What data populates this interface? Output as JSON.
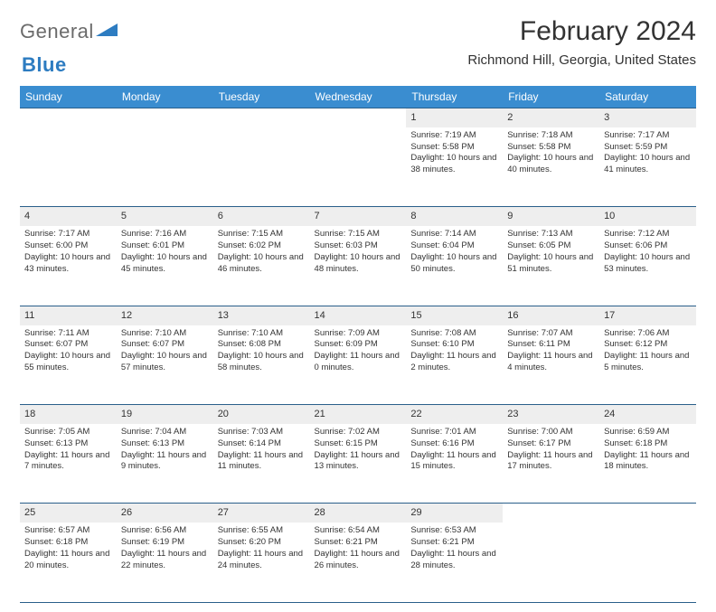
{
  "logo": {
    "word1": "General",
    "word2": "Blue"
  },
  "title": "February 2024",
  "location": "Richmond Hill, Georgia, United States",
  "dayHeaders": [
    "Sunday",
    "Monday",
    "Tuesday",
    "Wednesday",
    "Thursday",
    "Friday",
    "Saturday"
  ],
  "colors": {
    "headerBg": "#3a8dd0",
    "headerText": "#ffffff",
    "ruleLine": "#2a5f8a",
    "dayStripe": "#eeeeee",
    "bodyText": "#333333",
    "logoGray": "#6b6b6b",
    "logoBlue": "#2d7cc1"
  },
  "weeks": [
    [
      null,
      null,
      null,
      null,
      {
        "n": "1",
        "sr": "7:19 AM",
        "ss": "5:58 PM",
        "dl": "10 hours and 38 minutes."
      },
      {
        "n": "2",
        "sr": "7:18 AM",
        "ss": "5:58 PM",
        "dl": "10 hours and 40 minutes."
      },
      {
        "n": "3",
        "sr": "7:17 AM",
        "ss": "5:59 PM",
        "dl": "10 hours and 41 minutes."
      }
    ],
    [
      {
        "n": "4",
        "sr": "7:17 AM",
        "ss": "6:00 PM",
        "dl": "10 hours and 43 minutes."
      },
      {
        "n": "5",
        "sr": "7:16 AM",
        "ss": "6:01 PM",
        "dl": "10 hours and 45 minutes."
      },
      {
        "n": "6",
        "sr": "7:15 AM",
        "ss": "6:02 PM",
        "dl": "10 hours and 46 minutes."
      },
      {
        "n": "7",
        "sr": "7:15 AM",
        "ss": "6:03 PM",
        "dl": "10 hours and 48 minutes."
      },
      {
        "n": "8",
        "sr": "7:14 AM",
        "ss": "6:04 PM",
        "dl": "10 hours and 50 minutes."
      },
      {
        "n": "9",
        "sr": "7:13 AM",
        "ss": "6:05 PM",
        "dl": "10 hours and 51 minutes."
      },
      {
        "n": "10",
        "sr": "7:12 AM",
        "ss": "6:06 PM",
        "dl": "10 hours and 53 minutes."
      }
    ],
    [
      {
        "n": "11",
        "sr": "7:11 AM",
        "ss": "6:07 PM",
        "dl": "10 hours and 55 minutes."
      },
      {
        "n": "12",
        "sr": "7:10 AM",
        "ss": "6:07 PM",
        "dl": "10 hours and 57 minutes."
      },
      {
        "n": "13",
        "sr": "7:10 AM",
        "ss": "6:08 PM",
        "dl": "10 hours and 58 minutes."
      },
      {
        "n": "14",
        "sr": "7:09 AM",
        "ss": "6:09 PM",
        "dl": "11 hours and 0 minutes."
      },
      {
        "n": "15",
        "sr": "7:08 AM",
        "ss": "6:10 PM",
        "dl": "11 hours and 2 minutes."
      },
      {
        "n": "16",
        "sr": "7:07 AM",
        "ss": "6:11 PM",
        "dl": "11 hours and 4 minutes."
      },
      {
        "n": "17",
        "sr": "7:06 AM",
        "ss": "6:12 PM",
        "dl": "11 hours and 5 minutes."
      }
    ],
    [
      {
        "n": "18",
        "sr": "7:05 AM",
        "ss": "6:13 PM",
        "dl": "11 hours and 7 minutes."
      },
      {
        "n": "19",
        "sr": "7:04 AM",
        "ss": "6:13 PM",
        "dl": "11 hours and 9 minutes."
      },
      {
        "n": "20",
        "sr": "7:03 AM",
        "ss": "6:14 PM",
        "dl": "11 hours and 11 minutes."
      },
      {
        "n": "21",
        "sr": "7:02 AM",
        "ss": "6:15 PM",
        "dl": "11 hours and 13 minutes."
      },
      {
        "n": "22",
        "sr": "7:01 AM",
        "ss": "6:16 PM",
        "dl": "11 hours and 15 minutes."
      },
      {
        "n": "23",
        "sr": "7:00 AM",
        "ss": "6:17 PM",
        "dl": "11 hours and 17 minutes."
      },
      {
        "n": "24",
        "sr": "6:59 AM",
        "ss": "6:18 PM",
        "dl": "11 hours and 18 minutes."
      }
    ],
    [
      {
        "n": "25",
        "sr": "6:57 AM",
        "ss": "6:18 PM",
        "dl": "11 hours and 20 minutes."
      },
      {
        "n": "26",
        "sr": "6:56 AM",
        "ss": "6:19 PM",
        "dl": "11 hours and 22 minutes."
      },
      {
        "n": "27",
        "sr": "6:55 AM",
        "ss": "6:20 PM",
        "dl": "11 hours and 24 minutes."
      },
      {
        "n": "28",
        "sr": "6:54 AM",
        "ss": "6:21 PM",
        "dl": "11 hours and 26 minutes."
      },
      {
        "n": "29",
        "sr": "6:53 AM",
        "ss": "6:21 PM",
        "dl": "11 hours and 28 minutes."
      },
      null,
      null
    ]
  ],
  "labels": {
    "sunrise": "Sunrise:",
    "sunset": "Sunset:",
    "daylight": "Daylight:"
  }
}
